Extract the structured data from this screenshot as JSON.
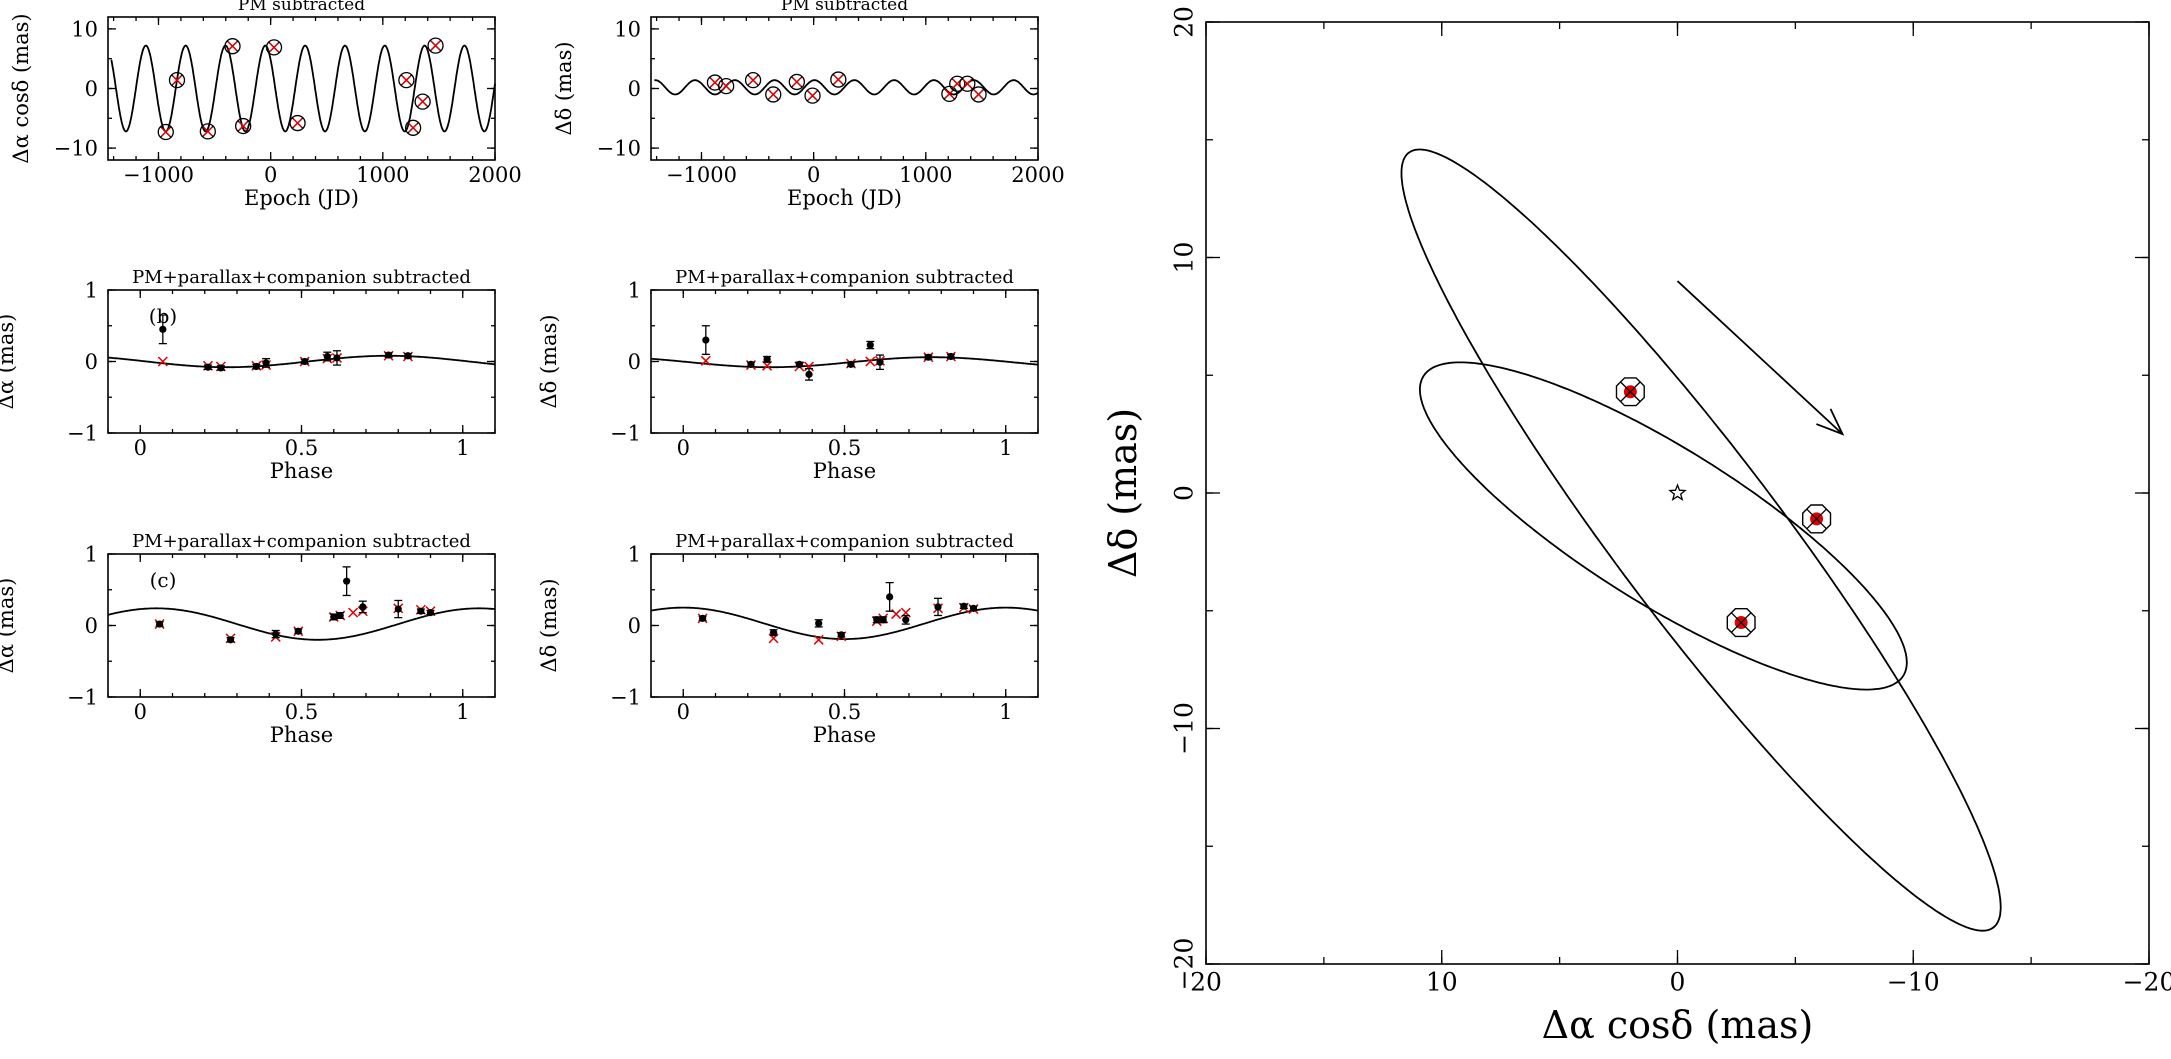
{
  "colors": {
    "ink": "#000000",
    "model": "#e00000",
    "background": "#ffffff"
  },
  "chart_data": [
    {
      "id": "p1",
      "type": "line",
      "title": "PM subtracted",
      "xlabel": "Epoch (JD)",
      "ylabel": "Δα cosδ (mas)",
      "xlim": [
        -1450,
        2000
      ],
      "ylim": [
        -12,
        12
      ],
      "xticks": [
        -1000,
        0,
        1000,
        2000
      ],
      "yticks": [
        -10,
        0,
        10
      ],
      "xtick_labels": [
        "−1000",
        "0",
        "1000",
        "2000"
      ],
      "ytick_labels": [
        "−10",
        "0",
        "10"
      ],
      "model": {
        "amplitude": 7.2,
        "period": 355,
        "phase_zero": -935
      },
      "points": {
        "marker": "circled-x",
        "x": [
          -935,
          -835,
          -560,
          -340,
          -245,
          30,
          240,
          1210,
          1270,
          1355,
          1470
        ],
        "y": [
          -7.3,
          1.4,
          -7.2,
          7.1,
          -6.3,
          6.9,
          -5.8,
          1.4,
          -6.6,
          -2.2,
          7.2
        ]
      }
    },
    {
      "id": "p2",
      "type": "line",
      "title": "PM subtracted",
      "xlabel": "Epoch (JD)",
      "ylabel": "Δδ (mas)",
      "xlim": [
        -1450,
        2000
      ],
      "ylim": [
        -12,
        12
      ],
      "xticks": [
        -1000,
        0,
        1000,
        2000
      ],
      "yticks": [
        -10,
        0,
        10
      ],
      "xtick_labels": [
        "−1000",
        "0",
        "1000",
        "2000"
      ],
      "ytick_labels": [
        "−10",
        "0",
        "10"
      ],
      "model": {
        "amplitude": 1.2,
        "period": 355,
        "phase_zero": -880,
        "offset": 0.2
      },
      "points": {
        "marker": "circled-x",
        "x": [
          -880,
          -780,
          -540,
          -360,
          -150,
          -10,
          220,
          1210,
          1280,
          1370,
          1470
        ],
        "y": [
          1.0,
          0.4,
          1.4,
          -1.0,
          1.1,
          -1.2,
          1.5,
          -0.9,
          0.8,
          0.8,
          -1.0
        ]
      }
    },
    {
      "id": "p3",
      "type": "scatter",
      "panel_label": "(b)",
      "title": "PM+parallax+companion subtracted",
      "xlabel": "Phase",
      "ylabel": "Δα (mas)",
      "xlim": [
        -0.1,
        1.1
      ],
      "ylim": [
        -1,
        1
      ],
      "xticks": [
        0,
        0.5,
        1
      ],
      "yticks": [
        -1,
        0,
        1
      ],
      "xtick_labels": [
        "0",
        "0.5",
        "1"
      ],
      "ytick_labels": [
        "−1",
        "0",
        "1"
      ],
      "model": {
        "amplitude": 0.08,
        "offset": 0.0,
        "phase_shift": 0.27
      },
      "data": {
        "phase": [
          0.07,
          0.21,
          0.25,
          0.36,
          0.39,
          0.51,
          0.58,
          0.61,
          0.77,
          0.83
        ],
        "value": [
          0.45,
          -0.08,
          -0.09,
          -0.07,
          -0.02,
          0.0,
          0.07,
          0.05,
          0.09,
          0.08
        ],
        "error": [
          0.2,
          0.03,
          0.03,
          0.03,
          0.06,
          0.03,
          0.06,
          0.1,
          0.03,
          0.03
        ]
      },
      "model_points": {
        "phase": [
          0.07,
          0.21,
          0.25,
          0.36,
          0.39,
          0.51,
          0.58,
          0.61,
          0.77,
          0.83
        ],
        "value": [
          0.0,
          -0.06,
          -0.07,
          -0.06,
          -0.05,
          0.0,
          0.04,
          0.05,
          0.08,
          0.07
        ]
      }
    },
    {
      "id": "p4",
      "type": "scatter",
      "title": "PM+parallax+companion subtracted",
      "xlabel": "Phase",
      "ylabel": "Δδ (mas)",
      "xlim": [
        -0.1,
        1.1
      ],
      "ylim": [
        -1,
        1
      ],
      "xticks": [
        0,
        0.5,
        1
      ],
      "yticks": [
        -1,
        0,
        1
      ],
      "xtick_labels": [
        "0",
        "0.5",
        "1"
      ],
      "ytick_labels": [
        "−1",
        "0",
        "1"
      ],
      "model": {
        "amplitude": 0.07,
        "offset": -0.01,
        "phase_shift": 0.27
      },
      "data": {
        "phase": [
          0.07,
          0.21,
          0.26,
          0.36,
          0.39,
          0.52,
          0.58,
          0.61,
          0.76,
          0.83
        ],
        "value": [
          0.3,
          -0.04,
          0.03,
          -0.04,
          -0.18,
          -0.04,
          0.23,
          -0.01,
          0.06,
          0.07
        ],
        "error": [
          0.2,
          0.03,
          0.04,
          0.03,
          0.08,
          0.03,
          0.05,
          0.1,
          0.03,
          0.03
        ]
      },
      "model_points": {
        "phase": [
          0.07,
          0.21,
          0.26,
          0.36,
          0.39,
          0.52,
          0.58,
          0.61,
          0.76,
          0.83
        ],
        "value": [
          0.01,
          -0.05,
          -0.06,
          -0.07,
          -0.07,
          -0.03,
          0.0,
          0.01,
          0.06,
          0.07
        ]
      }
    },
    {
      "id": "p5",
      "type": "scatter",
      "panel_label": "(c)",
      "title": "PM+parallax+companion subtracted",
      "xlabel": "Phase",
      "ylabel": "Δα (mas)",
      "xlim": [
        -0.1,
        1.1
      ],
      "ylim": [
        -1,
        1
      ],
      "xticks": [
        0,
        0.5,
        1
      ],
      "yticks": [
        -1,
        0,
        1
      ],
      "xtick_labels": [
        "0",
        "0.5",
        "1"
      ],
      "ytick_labels": [
        "−1",
        "0",
        "1"
      ],
      "model": {
        "amplitude": 0.22,
        "offset": 0.02,
        "phase_shift": 0.55
      },
      "data": {
        "phase": [
          0.06,
          0.28,
          0.42,
          0.49,
          0.6,
          0.62,
          0.64,
          0.69,
          0.8,
          0.87,
          0.9
        ],
        "value": [
          0.02,
          -0.2,
          -0.12,
          -0.08,
          0.12,
          0.14,
          0.62,
          0.26,
          0.23,
          0.2,
          0.18
        ],
        "error": [
          0.03,
          0.03,
          0.05,
          0.03,
          0.04,
          0.04,
          0.2,
          0.08,
          0.12,
          0.03,
          0.03
        ]
      },
      "model_points": {
        "phase": [
          0.06,
          0.28,
          0.42,
          0.49,
          0.6,
          0.62,
          0.66,
          0.69,
          0.8,
          0.87,
          0.9
        ],
        "value": [
          0.02,
          -0.18,
          -0.16,
          -0.08,
          0.12,
          0.14,
          0.18,
          0.2,
          0.24,
          0.22,
          0.2
        ]
      }
    },
    {
      "id": "p6",
      "type": "scatter",
      "title": "PM+parallax+companion subtracted",
      "xlabel": "Phase",
      "ylabel": "Δδ (mas)",
      "xlim": [
        -0.1,
        1.1
      ],
      "ylim": [
        -1,
        1
      ],
      "xticks": [
        0,
        0.5,
        1
      ],
      "yticks": [
        -1,
        0,
        1
      ],
      "xtick_labels": [
        "0",
        "0.5",
        "1"
      ],
      "ytick_labels": [
        "−1",
        "0",
        "1"
      ],
      "model": {
        "amplitude": 0.22,
        "offset": 0.03,
        "phase_shift": 0.5
      },
      "data": {
        "phase": [
          0.06,
          0.28,
          0.42,
          0.49,
          0.6,
          0.62,
          0.64,
          0.69,
          0.79,
          0.87,
          0.9
        ],
        "value": [
          0.1,
          -0.1,
          0.03,
          -0.13,
          0.08,
          0.08,
          0.4,
          0.08,
          0.26,
          0.27,
          0.24
        ],
        "error": [
          0.03,
          0.04,
          0.05,
          0.03,
          0.04,
          0.04,
          0.2,
          0.06,
          0.12,
          0.03,
          0.03
        ]
      },
      "model_points": {
        "phase": [
          0.06,
          0.28,
          0.42,
          0.49,
          0.6,
          0.62,
          0.66,
          0.69,
          0.79,
          0.87,
          0.9
        ],
        "value": [
          0.1,
          -0.18,
          -0.2,
          -0.15,
          0.06,
          0.1,
          0.16,
          0.18,
          0.24,
          0.25,
          0.23
        ]
      }
    },
    {
      "id": "orbit",
      "type": "line",
      "title": "",
      "xlabel": "Δα cosδ (mas)",
      "ylabel": "Δδ (mas)",
      "xlim": [
        20,
        -20
      ],
      "ylim": [
        -20,
        20
      ],
      "xticks": [
        20,
        10,
        0,
        -10,
        -20
      ],
      "yticks": [
        -20,
        -10,
        0,
        10,
        20
      ],
      "xtick_labels": [
        "20",
        "10",
        "0",
        "−10",
        "−20"
      ],
      "ytick_labels": [
        "−20",
        "−10",
        "0",
        "10",
        "20"
      ],
      "star": {
        "x": 0,
        "y": 0
      },
      "orbits": [
        {
          "name": "outer orbit",
          "center": [
            -1.0,
            -2.0
          ],
          "semi_major": 20.6,
          "semi_minor": 3.5,
          "angle_deg": -53
        },
        {
          "name": "inner orbit",
          "center": [
            0.6,
            -1.4
          ],
          "semi_major": 12.0,
          "semi_minor": 3.3,
          "angle_deg": -32
        }
      ],
      "arrow": {
        "from": [
          0,
          9
        ],
        "to": [
          -7,
          2.5
        ]
      },
      "intersections": [
        {
          "x": 2.0,
          "y": 4.3
        },
        {
          "x": -5.9,
          "y": -1.1
        },
        {
          "x": -2.7,
          "y": -5.5
        }
      ]
    }
  ]
}
